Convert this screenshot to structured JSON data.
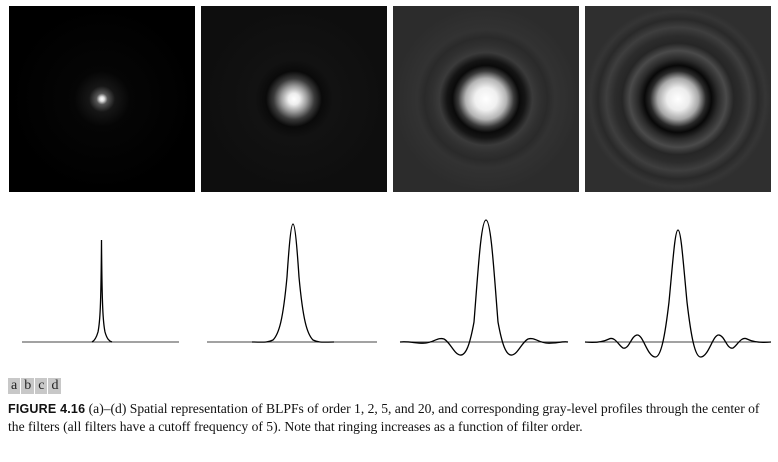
{
  "figure": {
    "panel_labels": [
      "a",
      "b",
      "c",
      "d"
    ],
    "caption_label": "FIGURE 4.16",
    "caption_text": "(a)–(d) Spatial representation of BLPFs of order 1, 2, 5, and 20, and corresponding gray-level profiles through the center of the filters (all filters have a cutoff frequency of 5). Note that ringing increases as a function of filter order."
  },
  "panels": [
    {
      "order": 1,
      "background": "#000000"
    },
    {
      "order": 2,
      "background": "#0f0f0f"
    },
    {
      "order": 5,
      "background": "#2c2c2c"
    },
    {
      "order": 20,
      "background": "#2f2f2f"
    }
  ],
  "chart_data": [
    {
      "type": "line",
      "filter_order": 1,
      "cutoff_frequency": 5,
      "ringing": false
    },
    {
      "type": "line",
      "filter_order": 2,
      "cutoff_frequency": 5,
      "ringing": false
    },
    {
      "type": "line",
      "filter_order": 5,
      "cutoff_frequency": 5,
      "ringing": true
    },
    {
      "type": "line",
      "filter_order": 20,
      "cutoff_frequency": 5,
      "ringing": true
    }
  ]
}
